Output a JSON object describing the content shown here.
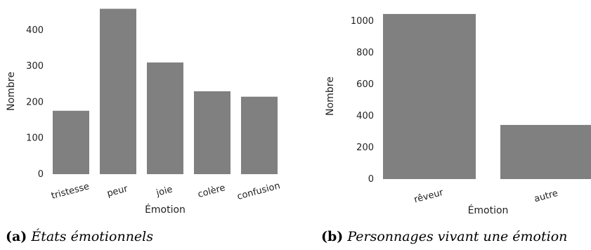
{
  "chart_data": [
    {
      "type": "bar",
      "categories": [
        "tristesse",
        "peur",
        "joie",
        "colère",
        "confusion"
      ],
      "values": [
        176,
        459,
        310,
        230,
        215
      ],
      "xlabel": "Émotion",
      "ylabel": "Nombre",
      "ylim": [
        0,
        460
      ],
      "yticks": [
        0,
        100,
        200,
        300,
        400
      ],
      "bar_color": "#808080",
      "grid": false,
      "caption_label": "(a)",
      "caption_text": "États émotionnels"
    },
    {
      "type": "bar",
      "categories": [
        "rêveur",
        "autre"
      ],
      "values": [
        1046,
        343
      ],
      "xlabel": "Émotion",
      "ylabel": "Nombre",
      "ylim": [
        0,
        1050
      ],
      "yticks": [
        0,
        200,
        400,
        600,
        800,
        1000
      ],
      "bar_color": "#808080",
      "grid": false,
      "caption_label": "(b)",
      "caption_text": "Personnages vivant une émotion"
    }
  ]
}
